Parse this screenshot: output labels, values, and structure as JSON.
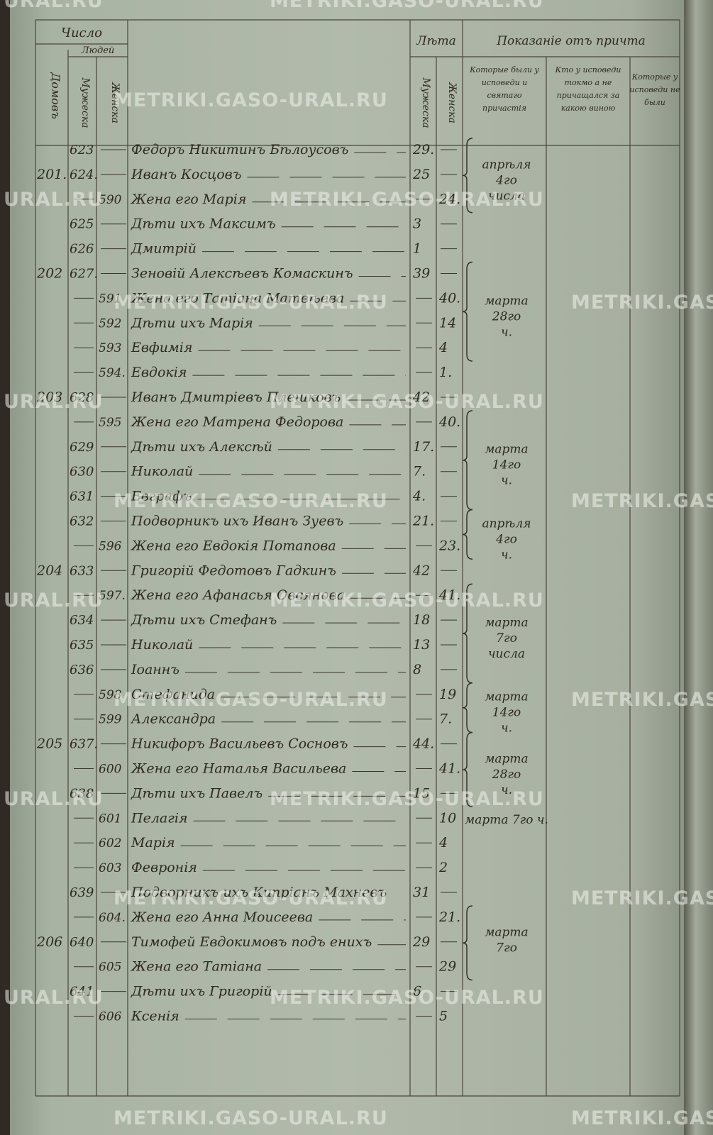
{
  "header": {
    "count": "Число",
    "houses": "Домовъ",
    "people": "Людей",
    "male": "Мужеска",
    "female": "Женска",
    "ages": "Лѣта",
    "age_male": "Мужеска",
    "age_female": "Женска",
    "clergy_report": "Показаніе отъ причта",
    "confessed_communed": "Которые были у исповеди и святаго причастія",
    "confessed_only": "Кто у исповеди токмо а не причащался за какою виною",
    "not_confessed": "Которые у исповеди не были"
  },
  "watermark": "METRIKI.GASO-URAL.RU",
  "watermark_short": "URAL.RU",
  "table": {
    "rows": [
      {
        "house": null,
        "male_no": "623",
        "female_no": null,
        "name": "Федоръ Никитинъ Бѣлоусовъ",
        "age_m": "29.",
        "age_f": null,
        "note": "апрѣля 4го числа"
      },
      {
        "house": "201.",
        "male_no": "624.",
        "female_no": null,
        "name": "Иванъ Косцовъ",
        "age_m": "25",
        "age_f": null,
        "note": null
      },
      {
        "house": null,
        "male_no": null,
        "female_no": "590",
        "name": "Жена его Марія",
        "age_m": null,
        "age_f": "24.",
        "note": null
      },
      {
        "house": null,
        "male_no": "625",
        "female_no": null,
        "name": "Дѣти ихъ Максимъ",
        "age_m": "3",
        "age_f": null,
        "note": null
      },
      {
        "house": null,
        "male_no": "626",
        "female_no": null,
        "name": "Дмитрій",
        "age_m": "1",
        "age_f": null,
        "note": null
      },
      {
        "house": "202",
        "male_no": "627.",
        "female_no": null,
        "name": "Зеновій Алексѣевъ Комаскинъ",
        "age_m": "39",
        "age_f": null,
        "note": "марта 28го ч."
      },
      {
        "house": null,
        "male_no": null,
        "female_no": "591",
        "name": "Жена его Татіана Матвѣева",
        "age_m": null,
        "age_f": "40.",
        "note": null
      },
      {
        "house": null,
        "male_no": null,
        "female_no": "592",
        "name": "Дѣти ихъ Марія",
        "age_m": null,
        "age_f": "14",
        "note": null
      },
      {
        "house": null,
        "male_no": null,
        "female_no": "593",
        "name": "Евфимія",
        "age_m": null,
        "age_f": "4",
        "note": null
      },
      {
        "house": null,
        "male_no": null,
        "female_no": "594.",
        "name": "Евдокія",
        "age_m": null,
        "age_f": "1.",
        "note": null
      },
      {
        "house": "203",
        "male_no": "628",
        "female_no": null,
        "name": "Иванъ Дмитріевъ Плешковъ",
        "age_m": "42",
        "age_f": null,
        "note": null
      },
      {
        "house": null,
        "male_no": null,
        "female_no": "595",
        "name": "Жена его Матрена Федорова",
        "age_m": null,
        "age_f": "40.",
        "note": "марта 14го ч."
      },
      {
        "house": null,
        "male_no": "629",
        "female_no": null,
        "name": "Дѣти ихъ Алексѣй",
        "age_m": "17.",
        "age_f": null,
        "note": null
      },
      {
        "house": null,
        "male_no": "630",
        "female_no": null,
        "name": "Николай",
        "age_m": "7.",
        "age_f": null,
        "note": null
      },
      {
        "house": null,
        "male_no": "631",
        "female_no": null,
        "name": "Евграфъ",
        "age_m": "4.",
        "age_f": null,
        "note": null
      },
      {
        "house": null,
        "male_no": "632",
        "female_no": null,
        "name": "Подворникъ ихъ Иванъ Зуевъ",
        "age_m": "21.",
        "age_f": null,
        "note": "апрѣля 4го ч."
      },
      {
        "house": null,
        "male_no": null,
        "female_no": "596",
        "name": "Жена его Евдокія Потапова",
        "age_m": null,
        "age_f": "23.",
        "note": null
      },
      {
        "house": "204",
        "male_no": "633",
        "female_no": null,
        "name": "Григорій Федотовъ Гадкинъ",
        "age_m": "42",
        "age_f": null,
        "note": null
      },
      {
        "house": null,
        "male_no": null,
        "female_no": "597.",
        "name": "Жена его Афанасья Овсянова",
        "age_m": null,
        "age_f": "41.",
        "note": "марта 7го числа"
      },
      {
        "house": null,
        "male_no": "634",
        "female_no": null,
        "name": "Дѣти ихъ Стефанъ",
        "age_m": "18",
        "age_f": null,
        "note": null
      },
      {
        "house": null,
        "male_no": "635",
        "female_no": null,
        "name": "Николай",
        "age_m": "13",
        "age_f": null,
        "note": null
      },
      {
        "house": null,
        "male_no": "636",
        "female_no": null,
        "name": "Іоаннъ",
        "age_m": "8",
        "age_f": null,
        "note": null
      },
      {
        "house": null,
        "male_no": null,
        "female_no": "598",
        "name": "Стефанида",
        "age_m": null,
        "age_f": "19",
        "note": "марта 14го ч."
      },
      {
        "house": null,
        "male_no": null,
        "female_no": "599",
        "name": "Александра",
        "age_m": null,
        "age_f": "7.",
        "note": null
      },
      {
        "house": "205",
        "male_no": "637.",
        "female_no": null,
        "name": "Никифоръ Васильевъ Сосновъ",
        "age_m": "44.",
        "age_f": null,
        "note": "марта 28го ч."
      },
      {
        "house": null,
        "male_no": null,
        "female_no": "600",
        "name": "Жена его Наталья Васильева",
        "age_m": null,
        "age_f": "41.",
        "note": null
      },
      {
        "house": null,
        "male_no": "638",
        "female_no": null,
        "name": "Дѣти ихъ Павелъ",
        "age_m": "15",
        "age_f": null,
        "note": null
      },
      {
        "house": null,
        "male_no": null,
        "female_no": "601",
        "name": "Пелагія",
        "age_m": null,
        "age_f": "10",
        "note": "марта 7го ч."
      },
      {
        "house": null,
        "male_no": null,
        "female_no": "602",
        "name": "Марія",
        "age_m": null,
        "age_f": "4",
        "note": null
      },
      {
        "house": null,
        "male_no": null,
        "female_no": "603",
        "name": "Февронія",
        "age_m": null,
        "age_f": "2",
        "note": null
      },
      {
        "house": null,
        "male_no": "639",
        "female_no": null,
        "name": "Подворникъ ихъ Кипріанъ Махневъ",
        "age_m": "31",
        "age_f": null,
        "note": null
      },
      {
        "house": null,
        "male_no": null,
        "female_no": "604.",
        "name": "Жена его Анна Моисеева",
        "age_m": null,
        "age_f": "21.",
        "note": "марта 7го"
      },
      {
        "house": "206",
        "male_no": "640",
        "female_no": null,
        "name": "Тимофей Евдокимовъ подъ ениxъ",
        "age_m": "29",
        "age_f": null,
        "note": null
      },
      {
        "house": null,
        "male_no": null,
        "female_no": "605",
        "name": "Жена его Татіана",
        "age_m": null,
        "age_f": "29",
        "note": null
      },
      {
        "house": null,
        "male_no": "641",
        "female_no": null,
        "name": "Дѣти ихъ Григорій",
        "age_m": "6",
        "age_f": null,
        "note": null
      },
      {
        "house": null,
        "male_no": null,
        "female_no": "606",
        "name": "Ксенія",
        "age_m": null,
        "age_f": "5",
        "note": null
      }
    ]
  }
}
